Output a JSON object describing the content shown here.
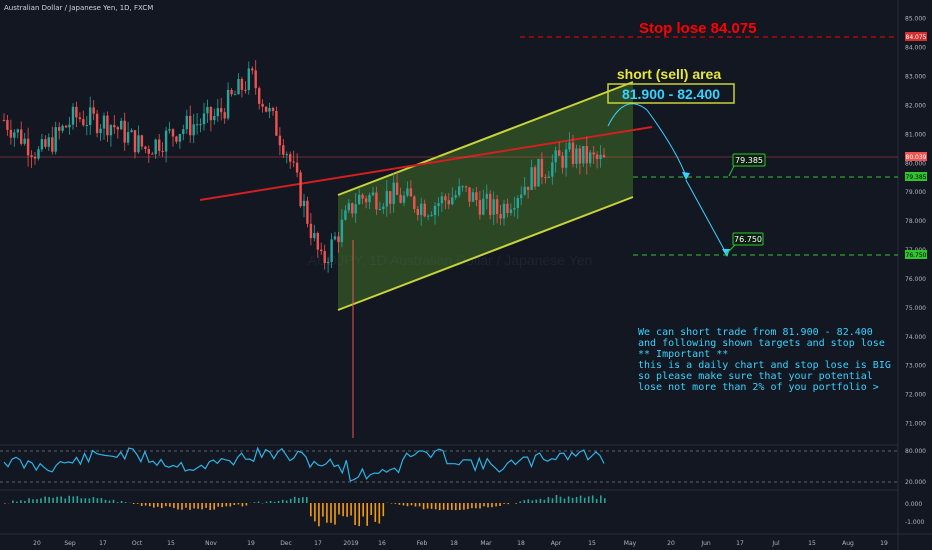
{
  "header": {
    "symbol": "Australian Dollar / Japanese Yen, 1D, FXCM"
  },
  "watermark": "AUDJPY, 1D  Australian Dollar / Japanese Yen",
  "price_axis": {
    "ticks": [
      "85.000",
      "84.000",
      "83.000",
      "82.000",
      "81.000",
      "80.000",
      "79.000",
      "78.000",
      "77.000",
      "76.000",
      "75.000",
      "74.000",
      "73.000",
      "72.000",
      "71.000"
    ],
    "last_price": "80.039",
    "stop_tag": "84.075",
    "target1_tag": "79.385",
    "target2_tag": "76.750"
  },
  "rsi_axis": {
    "ticks": [
      "80.000",
      "20.000"
    ]
  },
  "macd_axis": {
    "ticks": [
      "0.000",
      "-1.000"
    ]
  },
  "time_axis": {
    "ticks": [
      "20",
      "Sep",
      "17",
      "Oct",
      "15",
      "Nov",
      "19",
      "Dec",
      "17",
      "2019",
      "16",
      "Feb",
      "18",
      "Mar",
      "18",
      "Apr",
      "15",
      "May",
      "20",
      "Jun",
      "17",
      "Jul",
      "15",
      "Aug",
      "19"
    ]
  },
  "annotations": {
    "stop_loss": "Stop lose  84.075",
    "short_area_title": "short (sell) area",
    "short_area_range": "81.900 - 82.400",
    "target1": "79.385",
    "target2": "76.750"
  },
  "note": {
    "lines": [
      "We can short trade from 81.900 - 82.400",
      "and following shown targets and stop lose",
      "",
      "** Important **",
      "this is a daily chart and stop lose is BIG",
      "so please make sure that your potential",
      "lose not more than 2% of you portfolio >"
    ]
  },
  "colors": {
    "background": "#131722",
    "bull": "#26a69a",
    "bear": "#ef5350",
    "stop": "#ff0000",
    "channel": "#c8d33a",
    "target": "#2ec52e",
    "rsi": "#2ab4e5",
    "trendline": "#d31f1f",
    "note": "#35d3ff"
  },
  "chart_data": {
    "type": "candlestick",
    "x": [
      "2018-08-20",
      "2018-09-03",
      "2018-09-17",
      "2018-10-01",
      "2018-10-15",
      "2018-11-01",
      "2018-11-19",
      "2018-12-01",
      "2018-12-17",
      "2019-01-01",
      "2019-01-16",
      "2019-02-01",
      "2019-02-18",
      "2019-03-01",
      "2019-03-18",
      "2019-04-01",
      "2019-04-15",
      "2019-04-22"
    ],
    "close": [
      81.5,
      80.3,
      81.6,
      81.4,
      80.5,
      81.2,
      81.6,
      83.0,
      80.5,
      76.5,
      78.8,
      78.9,
      78.5,
      79.0,
      78.3,
      79.6,
      80.3,
      80.04
    ],
    "ylim": [
      70.5,
      85.3
    ],
    "levels": {
      "stop_loss": 84.075,
      "short_zone": [
        81.9,
        82.4
      ],
      "target1": 79.385,
      "target2": 76.75,
      "last": 80.039
    },
    "indicators": [
      "RSI",
      "MACD histogram"
    ],
    "rsi_levels": [
      80,
      20
    ]
  }
}
